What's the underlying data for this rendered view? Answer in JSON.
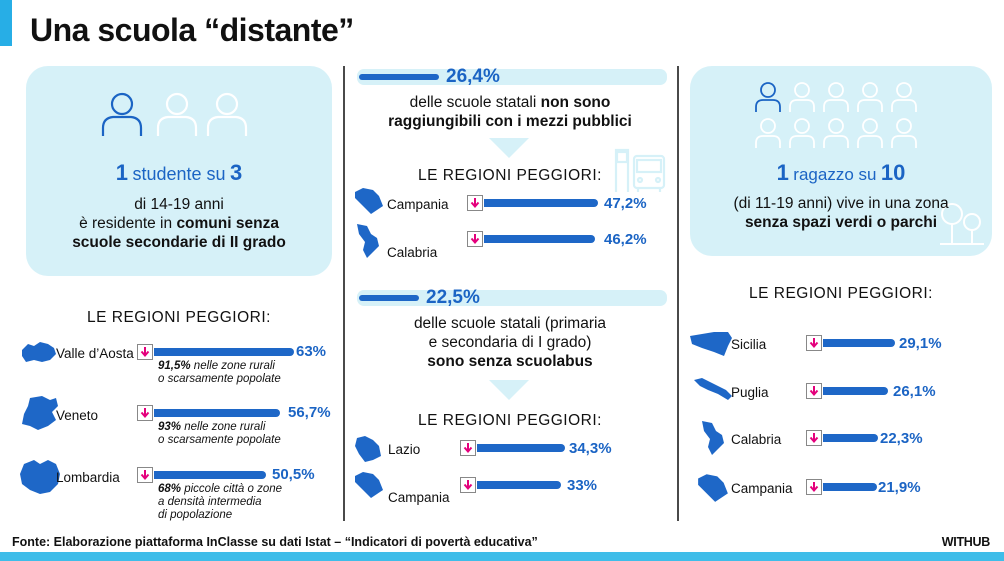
{
  "title": "Una scuola “distante”",
  "source": "Fonte: Elaborazione piattaforma InClasse su dati Istat – “Indicatori di povertà educativa”",
  "brand": "WITHUB",
  "colors": {
    "accent": "#1b64c4",
    "bubble": "#d6f1f8",
    "arrow": "#e4007c",
    "bar": "#1e67c7"
  },
  "left": {
    "stat_num_a": "1",
    "stat_mid": "studente su",
    "stat_num_b": "3",
    "line1": "di 14-19 anni",
    "line2_pre": "è residente in",
    "line2_bold": "comuni senza",
    "line3_bold": "scuole secondarie di II grado",
    "regions_header": "LE REGIONI PEGGIORI:",
    "regions": [
      {
        "name": "Valle d’Aosta",
        "value": "63%",
        "fraction": 1.0,
        "note_bold": "91,5%",
        "note_rest": " nelle zone rurali",
        "note2": "o scarsamente popolate",
        "note3": ""
      },
      {
        "name": "Veneto",
        "value": "56,7%",
        "fraction": 0.9,
        "note_bold": "93%",
        "note_rest": " nelle zone rurali",
        "note2": "o scarsamente popolate",
        "note3": ""
      },
      {
        "name": "Lombardia",
        "value": "50,5%",
        "fraction": 0.8,
        "note_bold": "68%",
        "note_rest": " piccole città o zone",
        "note2": "a densità intermedia",
        "note3": "di popolazione"
      }
    ]
  },
  "middle": {
    "stat1_value": "26,4%",
    "stat1_line1_pre": "delle scuole statali",
    "stat1_line1_bold": "non sono",
    "stat1_line2_bold": "raggiungibili con i mezzi pubblici",
    "regions1_header": "LE REGIONI PEGGIORI:",
    "regions1": [
      {
        "name": "Campania",
        "value": "47,2%",
        "fraction": 1.0
      },
      {
        "name": "Calabria",
        "value": "46,2%",
        "fraction": 0.97
      }
    ],
    "stat2_value": "22,5%",
    "stat2_line1": "delle scuole statali (primaria",
    "stat2_line2": "e secondaria di I grado)",
    "stat2_line3_bold": "sono senza scuolabus",
    "regions2_header": "LE REGIONI PEGGIORI:",
    "regions2": [
      {
        "name": "Lazio",
        "value": "34,3%",
        "fraction": 1.0
      },
      {
        "name": "Campania",
        "value": "33%",
        "fraction": 0.96
      }
    ]
  },
  "right": {
    "stat_num_a": "1",
    "stat_mid": "ragazzo su",
    "stat_num_b": "10",
    "line1": "(di 11-19 anni) vive in una zona",
    "line2_bold": "senza spazi verdi o parchi",
    "regions_header": "LE REGIONI PEGGIORI:",
    "regions": [
      {
        "name": "Sicilia",
        "value": "29,1%",
        "fraction": 1.0
      },
      {
        "name": "Puglia",
        "value": "26,1%",
        "fraction": 0.9
      },
      {
        "name": "Calabria",
        "value": "22,3%",
        "fraction": 0.77
      },
      {
        "name": "Campania",
        "value": "21,9%",
        "fraction": 0.75
      }
    ]
  }
}
